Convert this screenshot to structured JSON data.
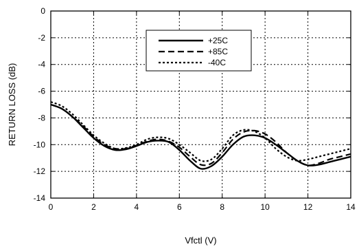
{
  "chart_data": {
    "type": "line",
    "title": "",
    "xlabel": "Vfctl (V)",
    "ylabel": "RETURN LOSS (dB)",
    "xlim": [
      0,
      14
    ],
    "ylim": [
      -14,
      0
    ],
    "xticks": [
      0,
      2,
      4,
      6,
      8,
      10,
      12,
      14
    ],
    "yticks": [
      0,
      -2,
      -4,
      -6,
      -8,
      -10,
      -12,
      -14
    ],
    "grid": true,
    "legend_position": "top-center",
    "series": [
      {
        "name": "+25C",
        "style": "solid",
        "x": [
          0,
          0.5,
          1,
          1.5,
          2,
          2.5,
          3,
          3.5,
          4,
          4.5,
          5,
          5.5,
          6,
          6.5,
          7,
          7.5,
          8,
          8.5,
          9,
          9.5,
          10,
          10.5,
          11,
          11.5,
          12,
          12.5,
          13,
          13.5,
          14
        ],
        "y": [
          -7.0,
          -7.3,
          -7.9,
          -8.7,
          -9.5,
          -10.1,
          -10.4,
          -10.35,
          -10.1,
          -9.8,
          -9.7,
          -9.8,
          -10.4,
          -11.2,
          -11.8,
          -11.6,
          -10.9,
          -10.0,
          -9.4,
          -9.3,
          -9.5,
          -10.0,
          -10.6,
          -11.2,
          -11.55,
          -11.5,
          -11.3,
          -11.1,
          -10.9
        ]
      },
      {
        "name": "+85C",
        "style": "dashed",
        "x": [
          0,
          0.5,
          1,
          1.5,
          2,
          2.5,
          3,
          3.5,
          4,
          4.5,
          5,
          5.5,
          6,
          6.5,
          7,
          7.5,
          8,
          8.5,
          9,
          9.5,
          10,
          10.5,
          11,
          11.5,
          12,
          12.5,
          13,
          13.5,
          14
        ],
        "y": [
          -7.0,
          -7.3,
          -7.9,
          -8.6,
          -9.4,
          -10.0,
          -10.3,
          -10.3,
          -10.05,
          -9.75,
          -9.6,
          -9.75,
          -10.2,
          -10.9,
          -11.5,
          -11.4,
          -10.6,
          -9.6,
          -9.05,
          -8.95,
          -9.2,
          -9.8,
          -10.6,
          -11.2,
          -11.55,
          -11.4,
          -11.1,
          -10.9,
          -10.7
        ]
      },
      {
        "name": "-40C",
        "style": "dotted",
        "x": [
          0,
          0.5,
          1,
          1.5,
          2,
          2.5,
          3,
          3.5,
          4,
          4.5,
          5,
          5.5,
          6,
          6.5,
          7,
          7.5,
          8,
          8.5,
          9,
          9.5,
          10,
          10.5,
          11,
          11.5,
          12,
          12.5,
          13,
          13.5,
          14
        ],
        "y": [
          -6.8,
          -7.1,
          -7.7,
          -8.5,
          -9.3,
          -9.9,
          -10.3,
          -10.25,
          -10.0,
          -9.6,
          -9.45,
          -9.55,
          -10.0,
          -10.6,
          -11.2,
          -11.1,
          -10.3,
          -9.3,
          -8.9,
          -9.0,
          -9.5,
          -10.3,
          -10.9,
          -11.2,
          -11.1,
          -10.9,
          -10.7,
          -10.5,
          -10.3
        ]
      }
    ]
  }
}
